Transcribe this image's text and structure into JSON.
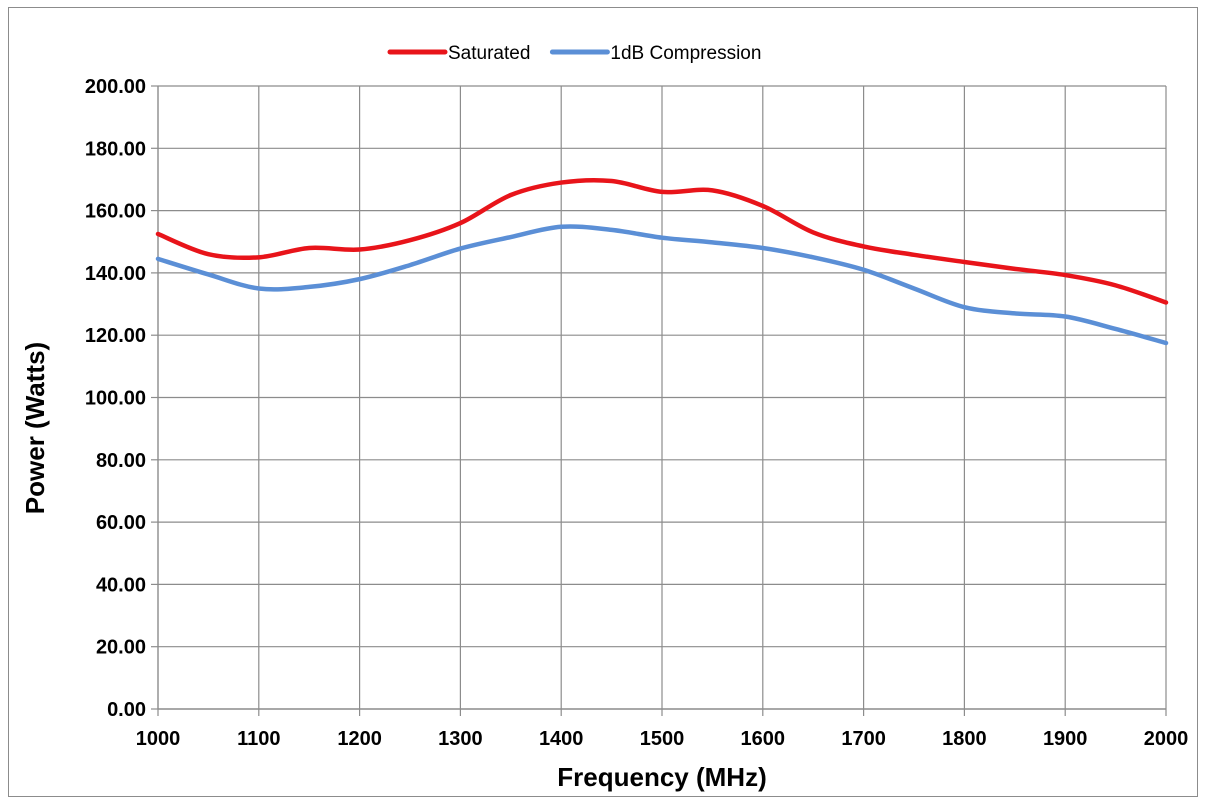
{
  "chart_data": {
    "type": "line",
    "title": "",
    "xlabel": "Frequency (MHz)",
    "ylabel": "Power (Watts)",
    "xlim": [
      1000,
      2000
    ],
    "ylim": [
      0,
      200
    ],
    "x_ticks": [
      "1000",
      "1100",
      "1200",
      "1300",
      "1400",
      "1500",
      "1600",
      "1700",
      "1800",
      "1900",
      "2000"
    ],
    "y_ticks": [
      "0.00",
      "20.00",
      "40.00",
      "60.00",
      "80.00",
      "100.00",
      "120.00",
      "140.00",
      "160.00",
      "180.00",
      "200.00"
    ],
    "grid": true,
    "legend_position": "top",
    "x": [
      1000,
      1050,
      1100,
      1150,
      1200,
      1250,
      1300,
      1350,
      1400,
      1450,
      1500,
      1550,
      1600,
      1650,
      1700,
      1750,
      1800,
      1850,
      1900,
      1950,
      2000
    ],
    "series": [
      {
        "name": "Saturated",
        "color": "#e8141a",
        "values": [
          152.5,
          146.0,
          145.0,
          148.0,
          147.5,
          150.5,
          156.0,
          165.0,
          169.0,
          169.5,
          166.0,
          166.5,
          161.5,
          153.0,
          148.5,
          145.8,
          143.5,
          141.3,
          139.3,
          136.0,
          130.5
        ]
      },
      {
        "name": "1dB Compression",
        "color": "#5b8fd6",
        "values": [
          144.5,
          139.5,
          135.0,
          135.5,
          138.0,
          142.5,
          147.8,
          151.5,
          154.8,
          153.8,
          151.3,
          149.8,
          148.0,
          145.0,
          141.0,
          135.0,
          129.0,
          127.0,
          126.0,
          122.0,
          117.5
        ]
      }
    ]
  }
}
